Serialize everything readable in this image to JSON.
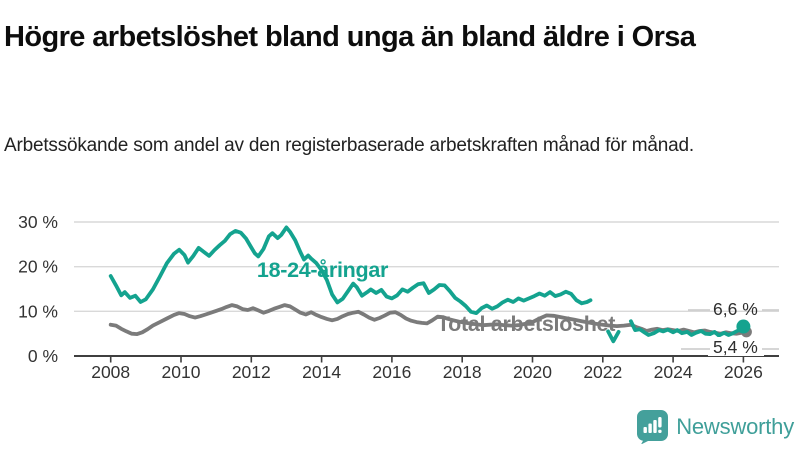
{
  "header": {
    "title": "Högre arbetslöshet bland unga än bland äldre i Orsa",
    "subtitle": "Arbetssökande som andel av den registerbaserade arbetskraften månad för månad."
  },
  "footer": {
    "brand": "Newsworthy",
    "logo_icon": "bar-chart-speech-bubble-icon"
  },
  "colors": {
    "accent_teal": "#14a38f",
    "line_gray": "#7b7b7b",
    "axis": "#3f3f3f",
    "grid": "#d9d9d9",
    "leader": "#c9c9c9",
    "tick_text": "#333333",
    "logo_teal": "#44a09b"
  },
  "chart_data": {
    "type": "line",
    "unit": "%",
    "title": "Högre arbetslöshet bland unga än bland äldre i Orsa",
    "xlabel": "",
    "ylabel": "",
    "xlim": [
      2007.8,
      2026.6
    ],
    "ylim": [
      0,
      30
    ],
    "y_ticks": [
      0,
      10,
      20,
      30
    ],
    "y_tick_labels": [
      "0 %",
      "10 %",
      "20 %",
      "30 %"
    ],
    "x_ticks": [
      2008,
      2010,
      2012,
      2014,
      2016,
      2018,
      2020,
      2022,
      2024,
      2026
    ],
    "x_tick_labels": [
      "2008",
      "2010",
      "2012",
      "2014",
      "2016",
      "2018",
      "2020",
      "2022",
      "2024",
      "2026"
    ],
    "grid": "horizontal-only",
    "legend_position": "inline-labels",
    "series": [
      {
        "name": "Total arbetslöshet",
        "color": "#7b7b7b",
        "end_value": 5.4,
        "end_label": "5,4 %",
        "end_x": 2026.0,
        "label": {
          "text": "Total arbetslöshet",
          "x": 2017.28,
          "y": 7.2
        },
        "segments": [
          [
            [
              2008.0,
              7.0
            ],
            [
              2008.15,
              6.8
            ],
            [
              2008.3,
              6.1
            ],
            [
              2008.45,
              5.5
            ],
            [
              2008.6,
              5.0
            ],
            [
              2008.75,
              4.9
            ],
            [
              2008.9,
              5.3
            ],
            [
              2009.05,
              6.0
            ],
            [
              2009.2,
              6.8
            ],
            [
              2009.4,
              7.6
            ],
            [
              2009.6,
              8.4
            ],
            [
              2009.8,
              9.2
            ],
            [
              2009.95,
              9.6
            ],
            [
              2010.1,
              9.4
            ],
            [
              2010.25,
              8.9
            ],
            [
              2010.4,
              8.6
            ],
            [
              2010.55,
              8.9
            ],
            [
              2010.7,
              9.3
            ],
            [
              2010.85,
              9.7
            ],
            [
              2011.0,
              10.1
            ],
            [
              2011.15,
              10.5
            ],
            [
              2011.3,
              11.0
            ],
            [
              2011.45,
              11.4
            ],
            [
              2011.6,
              11.1
            ],
            [
              2011.75,
              10.5
            ],
            [
              2011.9,
              10.3
            ],
            [
              2012.05,
              10.7
            ],
            [
              2012.2,
              10.2
            ],
            [
              2012.35,
              9.7
            ],
            [
              2012.5,
              10.1
            ],
            [
              2012.65,
              10.6
            ],
            [
              2012.8,
              11.0
            ],
            [
              2012.95,
              11.4
            ],
            [
              2013.1,
              11.1
            ],
            [
              2013.25,
              10.4
            ],
            [
              2013.4,
              9.7
            ],
            [
              2013.55,
              9.3
            ],
            [
              2013.7,
              9.8
            ],
            [
              2013.85,
              9.2
            ],
            [
              2014.0,
              8.7
            ],
            [
              2014.15,
              8.3
            ],
            [
              2014.3,
              8.0
            ],
            [
              2014.45,
              8.3
            ],
            [
              2014.6,
              8.9
            ],
            [
              2014.75,
              9.4
            ],
            [
              2014.9,
              9.7
            ],
            [
              2015.05,
              9.9
            ],
            [
              2015.2,
              9.3
            ],
            [
              2015.35,
              8.6
            ],
            [
              2015.5,
              8.1
            ],
            [
              2015.65,
              8.5
            ],
            [
              2015.8,
              9.1
            ],
            [
              2015.95,
              9.7
            ],
            [
              2016.1,
              9.8
            ],
            [
              2016.25,
              9.2
            ],
            [
              2016.4,
              8.4
            ],
            [
              2016.55,
              7.9
            ],
            [
              2016.7,
              7.6
            ],
            [
              2016.85,
              7.4
            ],
            [
              2017.0,
              7.3
            ],
            [
              2017.15,
              8.0
            ],
            [
              2017.3,
              8.8
            ],
            [
              2017.45,
              8.7
            ],
            [
              2017.6,
              8.3
            ],
            [
              2017.75,
              8.0
            ],
            [
              2017.9,
              7.7
            ],
            [
              2018.05,
              7.5
            ],
            [
              2018.2,
              7.3
            ],
            [
              2018.4,
              7.1
            ],
            [
              2018.6,
              6.9
            ],
            [
              2018.8,
              7.0
            ],
            [
              2019.0,
              7.1
            ],
            [
              2019.2,
              6.9
            ],
            [
              2019.4,
              6.8
            ],
            [
              2019.6,
              6.9
            ],
            [
              2019.8,
              7.2
            ],
            [
              2020.0,
              7.6
            ],
            [
              2020.2,
              8.4
            ],
            [
              2020.4,
              9.1
            ],
            [
              2020.6,
              9.0
            ],
            [
              2020.8,
              8.7
            ],
            [
              2021.0,
              8.4
            ],
            [
              2021.2,
              8.1
            ],
            [
              2021.4,
              7.8
            ],
            [
              2021.6,
              7.5
            ],
            [
              2021.8,
              7.2
            ],
            [
              2022.0,
              7.0
            ],
            [
              2022.2,
              6.8
            ],
            [
              2022.4,
              6.7
            ],
            [
              2022.6,
              6.8
            ],
            [
              2022.8,
              7.0
            ],
            [
              2022.95,
              6.5
            ],
            [
              2023.1,
              6.1
            ],
            [
              2023.25,
              5.6
            ],
            [
              2023.4,
              5.9
            ],
            [
              2023.55,
              6.1
            ],
            [
              2023.7,
              5.8
            ],
            [
              2023.85,
              6.0
            ],
            [
              2024.0,
              5.8
            ],
            [
              2024.15,
              5.6
            ],
            [
              2024.3,
              5.9
            ],
            [
              2024.45,
              5.6
            ],
            [
              2024.6,
              5.3
            ],
            [
              2024.75,
              5.6
            ],
            [
              2024.9,
              5.7
            ],
            [
              2025.05,
              5.4
            ],
            [
              2025.2,
              5.2
            ],
            [
              2025.35,
              5.0
            ],
            [
              2025.5,
              5.3
            ],
            [
              2025.65,
              5.1
            ],
            [
              2025.8,
              5.0
            ],
            [
              2025.95,
              5.2
            ],
            [
              2026.0,
              5.4
            ]
          ]
        ]
      },
      {
        "name": "18-24-åringar",
        "color": "#14a38f",
        "end_value": 6.6,
        "end_label": "6,6 %",
        "end_x": 2026.0,
        "label": {
          "text": "18-24-åringar",
          "x": 2012.16,
          "y": 19.3
        },
        "segments": [
          [
            [
              2008.0,
              17.9
            ],
            [
              2008.15,
              15.8
            ],
            [
              2008.3,
              13.6
            ],
            [
              2008.4,
              14.3
            ],
            [
              2008.55,
              13.0
            ],
            [
              2008.7,
              13.5
            ],
            [
              2008.85,
              12.1
            ],
            [
              2009.0,
              12.7
            ],
            [
              2009.2,
              14.9
            ],
            [
              2009.4,
              17.8
            ],
            [
              2009.6,
              20.8
            ],
            [
              2009.8,
              22.9
            ],
            [
              2009.95,
              23.8
            ],
            [
              2010.1,
              22.6
            ],
            [
              2010.2,
              20.9
            ],
            [
              2010.35,
              22.4
            ],
            [
              2010.5,
              24.2
            ],
            [
              2010.65,
              23.3
            ],
            [
              2010.8,
              22.4
            ],
            [
              2010.95,
              23.7
            ],
            [
              2011.1,
              24.8
            ],
            [
              2011.25,
              25.8
            ],
            [
              2011.4,
              27.3
            ],
            [
              2011.55,
              28.0
            ],
            [
              2011.7,
              27.6
            ],
            [
              2011.85,
              26.3
            ],
            [
              2012.0,
              24.3
            ],
            [
              2012.1,
              23.0
            ],
            [
              2012.2,
              22.3
            ],
            [
              2012.35,
              24.0
            ],
            [
              2012.5,
              26.8
            ],
            [
              2012.6,
              27.5
            ],
            [
              2012.75,
              26.4
            ],
            [
              2012.85,
              27.1
            ],
            [
              2013.0,
              28.8
            ],
            [
              2013.1,
              27.8
            ],
            [
              2013.25,
              25.9
            ],
            [
              2013.4,
              23.2
            ],
            [
              2013.5,
              21.6
            ],
            [
              2013.62,
              22.5
            ],
            [
              2013.7,
              21.8
            ],
            [
              2013.85,
              20.8
            ],
            [
              2014.0,
              19.2
            ],
            [
              2014.15,
              17.0
            ],
            [
              2014.3,
              13.8
            ],
            [
              2014.45,
              12.0
            ],
            [
              2014.6,
              12.8
            ],
            [
              2014.75,
              14.5
            ],
            [
              2014.9,
              16.2
            ],
            [
              2015.0,
              15.4
            ],
            [
              2015.15,
              13.5
            ],
            [
              2015.3,
              14.3
            ],
            [
              2015.4,
              14.9
            ],
            [
              2015.55,
              14.1
            ],
            [
              2015.7,
              14.8
            ],
            [
              2015.85,
              13.3
            ],
            [
              2016.0,
              12.9
            ],
            [
              2016.15,
              13.6
            ],
            [
              2016.3,
              14.9
            ],
            [
              2016.45,
              14.4
            ],
            [
              2016.6,
              15.3
            ],
            [
              2016.75,
              16.1
            ],
            [
              2016.9,
              16.3
            ],
            [
              2017.05,
              14.1
            ],
            [
              2017.2,
              14.9
            ],
            [
              2017.35,
              15.9
            ],
            [
              2017.5,
              15.8
            ],
            [
              2017.65,
              14.5
            ],
            [
              2017.8,
              13.0
            ],
            [
              2017.95,
              12.2
            ],
            [
              2018.1,
              11.2
            ],
            [
              2018.25,
              9.9
            ],
            [
              2018.4,
              9.6
            ],
            [
              2018.55,
              10.7
            ],
            [
              2018.7,
              11.3
            ],
            [
              2018.85,
              10.6
            ],
            [
              2019.0,
              11.1
            ],
            [
              2019.15,
              12.0
            ],
            [
              2019.3,
              12.6
            ],
            [
              2019.45,
              12.1
            ],
            [
              2019.6,
              12.9
            ],
            [
              2019.75,
              12.4
            ],
            [
              2019.9,
              12.9
            ],
            [
              2020.05,
              13.4
            ],
            [
              2020.2,
              14.0
            ],
            [
              2020.35,
              13.5
            ],
            [
              2020.5,
              14.3
            ],
            [
              2020.65,
              13.4
            ],
            [
              2020.8,
              13.8
            ],
            [
              2020.95,
              14.4
            ],
            [
              2021.1,
              13.9
            ],
            [
              2021.25,
              12.5
            ],
            [
              2021.4,
              11.8
            ],
            [
              2021.55,
              12.1
            ],
            [
              2021.65,
              12.5
            ]
          ],
          [
            [
              2022.15,
              5.5
            ],
            [
              2022.3,
              3.3
            ],
            [
              2022.45,
              5.4
            ]
          ],
          [
            [
              2022.8,
              7.8
            ],
            [
              2022.92,
              5.8
            ],
            [
              2023.05,
              6.0
            ],
            [
              2023.2,
              5.2
            ],
            [
              2023.3,
              4.7
            ],
            [
              2023.45,
              5.1
            ],
            [
              2023.6,
              5.8
            ],
            [
              2023.72,
              5.5
            ],
            [
              2023.85,
              5.9
            ],
            [
              2024.0,
              5.3
            ],
            [
              2024.12,
              5.8
            ],
            [
              2024.25,
              5.1
            ],
            [
              2024.4,
              5.4
            ],
            [
              2024.52,
              4.7
            ],
            [
              2024.65,
              5.2
            ],
            [
              2024.8,
              5.6
            ],
            [
              2024.92,
              5.0
            ],
            [
              2025.05,
              4.9
            ],
            [
              2025.18,
              5.4
            ],
            [
              2025.3,
              4.6
            ],
            [
              2025.45,
              5.2
            ],
            [
              2025.58,
              4.7
            ],
            [
              2025.7,
              5.1
            ],
            [
              2025.85,
              5.7
            ],
            [
              2026.0,
              6.6
            ]
          ]
        ]
      }
    ]
  }
}
